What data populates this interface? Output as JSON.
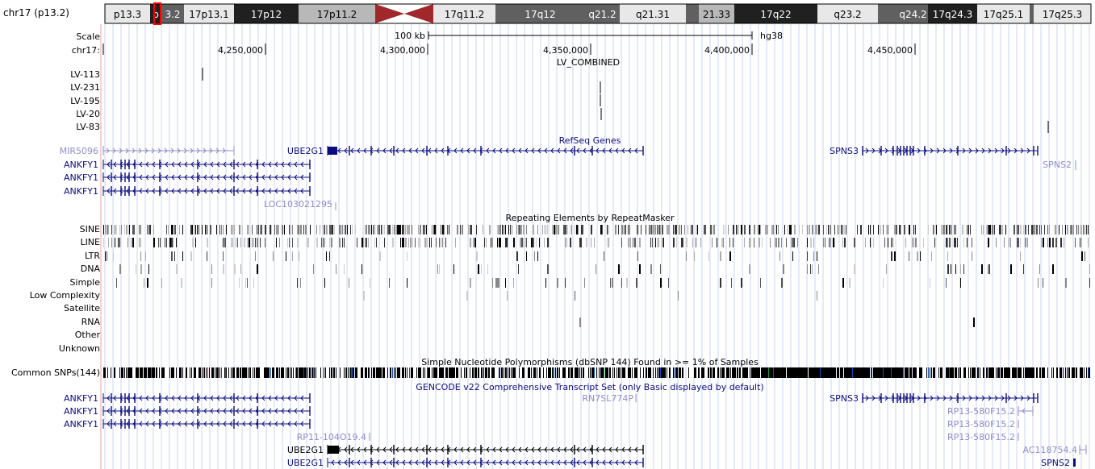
{
  "ideogram": {
    "chrom_label": "chr17 (p13.2)",
    "bands": [
      {
        "name": "p13.3",
        "stain": "white",
        "textColor": "#000"
      },
      {
        "name": "p",
        "stain": "black",
        "textColor": "#fff"
      },
      {
        "name": "3.2",
        "stain": "gray",
        "textColor": "#fff"
      },
      {
        "name": "17p13.1",
        "stain": "white",
        "textColor": "#000"
      },
      {
        "name": "17p12",
        "stain": "black",
        "textColor": "#fff"
      },
      {
        "name": "17p11.2",
        "stain": "light",
        "textColor": "#000"
      },
      {
        "name": "",
        "stain": "centromere",
        "textColor": "#000"
      },
      {
        "name": "17q11.2",
        "stain": "white",
        "textColor": "#000"
      },
      {
        "name": "17q12",
        "stain": "gray",
        "textColor": "#fff"
      },
      {
        "name": "q21.2",
        "stain": "gray",
        "textColor": "#fff"
      },
      {
        "name": "q21.31",
        "stain": "white",
        "textColor": "#000"
      },
      {
        "name": "",
        "stain": "gray",
        "textColor": "#fff"
      },
      {
        "name": "21.33",
        "stain": "light",
        "textColor": "#000"
      },
      {
        "name": "17q22",
        "stain": "black",
        "textColor": "#fff"
      },
      {
        "name": "q23.2",
        "stain": "white",
        "textColor": "#000"
      },
      {
        "name": "",
        "stain": "gray",
        "textColor": "#fff"
      },
      {
        "name": "q24.2",
        "stain": "gray",
        "textColor": "#fff"
      },
      {
        "name": "17q24.3",
        "stain": "black",
        "textColor": "#fff"
      },
      {
        "name": "17q25.1",
        "stain": "white",
        "textColor": "#000"
      },
      {
        "name": "",
        "stain": "gray",
        "textColor": "#fff"
      },
      {
        "name": "17q25.3",
        "stain": "white",
        "textColor": "#000"
      }
    ]
  },
  "ruler": {
    "scale_label": "Scale",
    "chrom_label": "chr17:",
    "scale_text": "100 kb",
    "assembly": "hg38",
    "positions": [
      "4,250,000",
      "4,300,000",
      "4,350,000",
      "4,400,000",
      "4,450,000"
    ]
  },
  "lv_track": {
    "title": "LV_COMBINED",
    "rows": [
      "LV-113",
      "LV-231",
      "LV-195",
      "LV-20",
      "LV-83"
    ]
  },
  "refseq": {
    "title": "RefSeq Genes",
    "genes": [
      "MIR5096",
      "ANKFY1",
      "ANKFY1",
      "ANKFY1",
      "UBE2G1",
      "SPNS3",
      "SPNS2",
      "LOC103021295"
    ]
  },
  "repeats": {
    "title": "Repeating Elements by RepeatMasker",
    "classes": [
      "SINE",
      "LINE",
      "LTR",
      "DNA",
      "Simple",
      "Low Complexity",
      "Satellite",
      "RNA",
      "Other",
      "Unknown"
    ]
  },
  "snps": {
    "title": "Simple Nucleotide Polymorphisms (dbSNP 144) Found in >= 1% of Samples",
    "label": "Common SNPs(144)"
  },
  "gencode": {
    "title": "GENCODE v22 Comprehensive Transcript Set (only Basic displayed by default)",
    "genes": [
      "ANKFY1",
      "ANKFY1",
      "ANKFY1",
      "RN7SL774P",
      "SPNS3",
      "RP13-580F15.2",
      "RP13-580F15.2",
      "RP13-580F15.2",
      "RP11-104O19.4",
      "UBE2G1",
      "UBE2G1",
      "AC118754.4",
      "SPNS2"
    ]
  },
  "colors": {
    "gene_dark": "#0b0b80",
    "gene_light": "#8c8cc8",
    "grid": "#c8d4f0",
    "highlight_line": "#f0a0a0",
    "ideogram_highlight": "#ff0000"
  }
}
